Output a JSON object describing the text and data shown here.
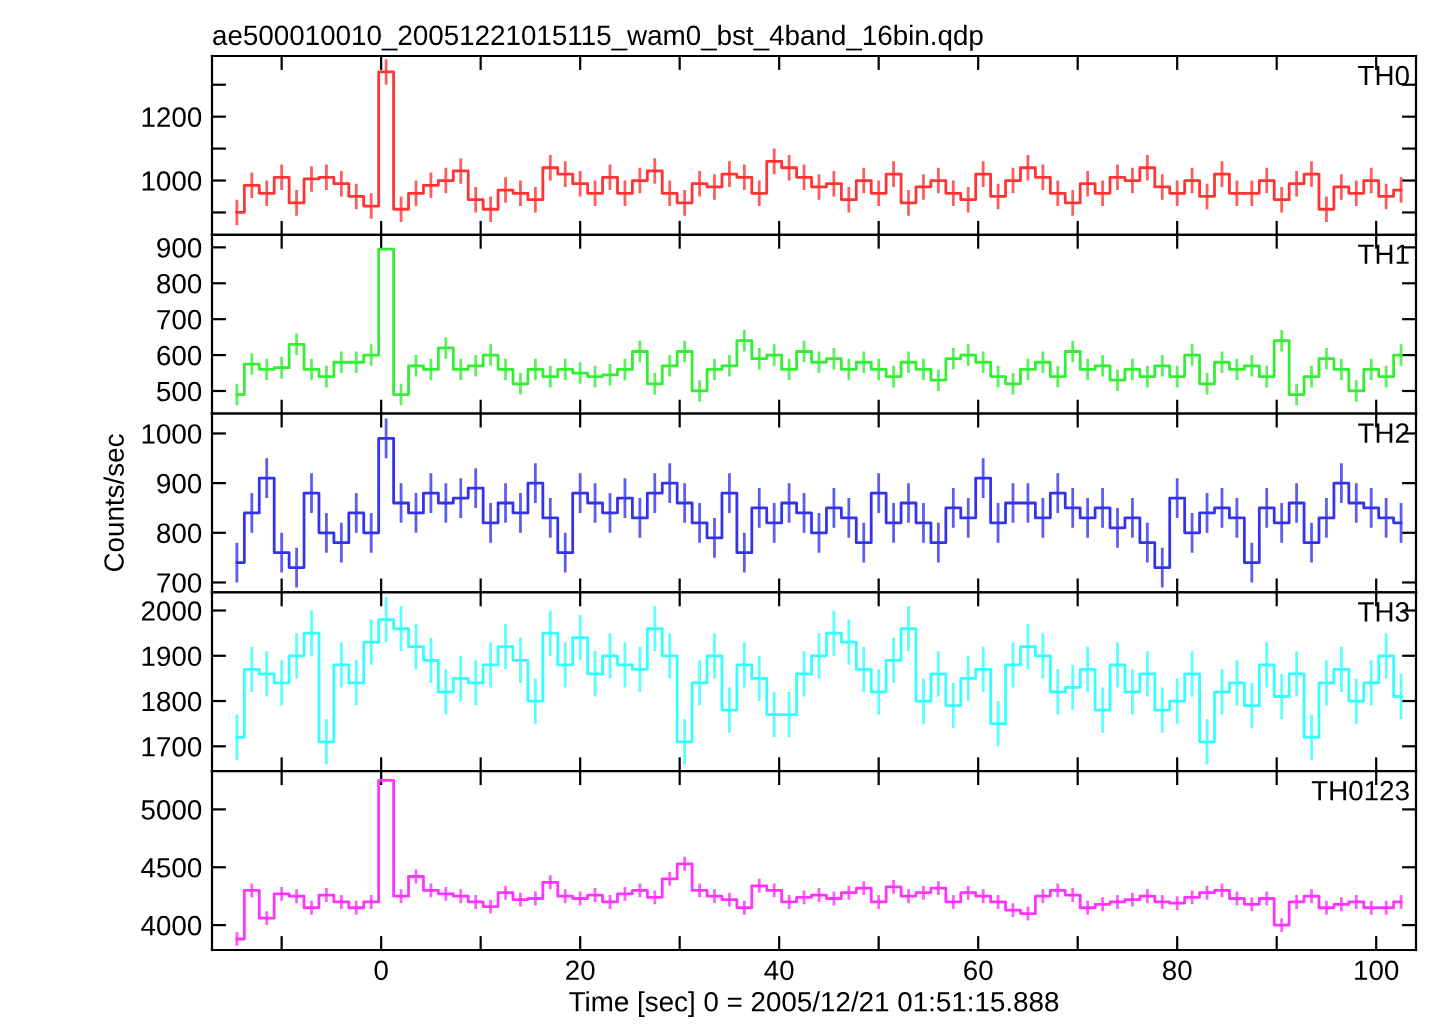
{
  "chart_data": [
    {
      "type": "step",
      "title": "ae500010010_20051221015115_wam0_bst_4band_16bin.qdp",
      "annotations": [
        "TH0"
      ],
      "tick_labels": "y",
      "marker": "none",
      "grid": false,
      "x": [
        -14.5,
        -13,
        -11.5,
        -10,
        -8.5,
        -7,
        -5.5,
        -4,
        -2.5,
        -1,
        0.5,
        2,
        3.5,
        5,
        6.5,
        8,
        9.5,
        11,
        12.5,
        14,
        15.5,
        17,
        18.5,
        20,
        21.5,
        23,
        24.5,
        26,
        27.5,
        29,
        30.5,
        32,
        33.5,
        35,
        36.5,
        38,
        39.5,
        41,
        42.5,
        44,
        45.5,
        47,
        48.5,
        50,
        51.5,
        53,
        54.5,
        56,
        57.5,
        59,
        60.5,
        62,
        63.5,
        65,
        66.5,
        68,
        69.5,
        71,
        72.5,
        74,
        75.5,
        77,
        78.5,
        80,
        81.5,
        83,
        84.5,
        86,
        87.5,
        89,
        90.5,
        92,
        93.5,
        95,
        96.5,
        98,
        99.5,
        101,
        102.5
      ],
      "xlim": [
        -17,
        104
      ],
      "xticks": [
        {
          "value": -10,
          "label": null
        },
        0,
        {
          "value": 10,
          "label": null
        },
        20,
        {
          "value": 30,
          "label": null
        },
        40,
        {
          "value": 50,
          "label": null
        },
        60,
        {
          "value": 70,
          "label": null
        },
        80,
        {
          "value": 90,
          "label": null
        },
        100
      ],
      "ylim": [
        830,
        1390
      ],
      "yticks": [
        {
          "value": 900,
          "label": null
        },
        1000,
        {
          "value": 1100,
          "label": null
        },
        1200,
        {
          "value": 1300,
          "label": null
        }
      ],
      "series": [
        {
          "color": "#ff3333",
          "values": [
            900,
            985,
            960,
            1010,
            930,
            1005,
            1010,
            990,
            950,
            920,
            1340,
            910,
            960,
            985,
            1000,
            1030,
            940,
            910,
            970,
            960,
            940,
            1040,
            1020,
            990,
            960,
            1010,
            960,
            1000,
            1030,
            960,
            930,
            990,
            980,
            1020,
            1010,
            960,
            1060,
            1040,
            1010,
            980,
            990,
            940,
            1000,
            960,
            1020,
            930,
            980,
            1000,
            960,
            940,
            1020,
            950,
            1000,
            1040,
            1010,
            960,
            930,
            990,
            960,
            1010,
            1000,
            1040,
            980,
            960,
            1000,
            950,
            1020,
            960,
            960,
            1000,
            940,
            990,
            1020,
            910,
            980,
            960,
            1000,
            950,
            970
          ],
          "errors": [
            40,
            40,
            40,
            40,
            40,
            40,
            40,
            40,
            40,
            40,
            40,
            40,
            40,
            40,
            40,
            40,
            40,
            40,
            40,
            40,
            40,
            40,
            40,
            40,
            40,
            40,
            40,
            40,
            40,
            40,
            40,
            40,
            40,
            40,
            40,
            40,
            40,
            40,
            40,
            40,
            40,
            40,
            40,
            40,
            40,
            40,
            40,
            40,
            40,
            40,
            40,
            40,
            40,
            40,
            40,
            40,
            40,
            40,
            40,
            40,
            40,
            40,
            40,
            40,
            40,
            40,
            40,
            40,
            40,
            40,
            40,
            40,
            40,
            40,
            40,
            40,
            40,
            40,
            40
          ]
        }
      ]
    },
    {
      "type": "step",
      "annotations": [
        "TH1"
      ],
      "tick_labels": "y",
      "marker": "none",
      "grid": false,
      "x": [
        -14.5,
        -13,
        -11.5,
        -10,
        -8.5,
        -7,
        -5.5,
        -4,
        -2.5,
        -1,
        0.5,
        2,
        3.5,
        5,
        6.5,
        8,
        9.5,
        11,
        12.5,
        14,
        15.5,
        17,
        18.5,
        20,
        21.5,
        23,
        24.5,
        26,
        27.5,
        29,
        30.5,
        32,
        33.5,
        35,
        36.5,
        38,
        39.5,
        41,
        42.5,
        44,
        45.5,
        47,
        48.5,
        50,
        51.5,
        53,
        54.5,
        56,
        57.5,
        59,
        60.5,
        62,
        63.5,
        65,
        66.5,
        68,
        69.5,
        71,
        72.5,
        74,
        75.5,
        77,
        78.5,
        80,
        81.5,
        83,
        84.5,
        86,
        87.5,
        89,
        90.5,
        92,
        93.5,
        95,
        96.5,
        98,
        99.5,
        101,
        102.5
      ],
      "xlim": [
        -17,
        104
      ],
      "xticks": [
        {
          "value": -10,
          "label": null
        },
        0,
        {
          "value": 10,
          "label": null
        },
        20,
        {
          "value": 30,
          "label": null
        },
        40,
        {
          "value": 50,
          "label": null
        },
        60,
        {
          "value": 70,
          "label": null
        },
        80,
        {
          "value": 90,
          "label": null
        },
        100
      ],
      "ylim": [
        437,
        935
      ],
      "yticks": [
        500,
        600,
        700,
        800,
        900
      ],
      "series": [
        {
          "color": "#33ee33",
          "values": [
            490,
            575,
            560,
            565,
            630,
            560,
            540,
            580,
            580,
            600,
            895,
            490,
            570,
            560,
            620,
            560,
            570,
            600,
            560,
            520,
            560,
            540,
            560,
            550,
            540,
            545,
            560,
            610,
            520,
            570,
            610,
            500,
            560,
            570,
            640,
            590,
            600,
            560,
            610,
            580,
            590,
            560,
            580,
            560,
            540,
            580,
            560,
            530,
            590,
            600,
            580,
            540,
            520,
            560,
            580,
            540,
            610,
            560,
            570,
            530,
            560,
            540,
            570,
            540,
            600,
            520,
            580,
            560,
            570,
            540,
            640,
            490,
            540,
            590,
            560,
            500,
            560,
            540,
            600
          ],
          "errors": [
            30,
            30,
            30,
            30,
            30,
            30,
            30,
            30,
            30,
            30,
            null,
            30,
            30,
            30,
            30,
            30,
            30,
            30,
            30,
            30,
            30,
            30,
            30,
            30,
            30,
            30,
            30,
            30,
            30,
            30,
            30,
            30,
            30,
            30,
            30,
            30,
            30,
            30,
            30,
            30,
            30,
            30,
            30,
            30,
            30,
            30,
            30,
            30,
            30,
            30,
            30,
            30,
            30,
            30,
            30,
            30,
            30,
            30,
            30,
            30,
            30,
            30,
            30,
            30,
            30,
            30,
            30,
            30,
            30,
            30,
            30,
            30,
            30,
            30,
            30,
            30,
            30,
            30,
            30
          ]
        }
      ]
    },
    {
      "type": "step",
      "annotations": [
        "TH2"
      ],
      "ylabel": "Counts/sec",
      "tick_labels": "y",
      "marker": "none",
      "grid": false,
      "x": [
        -14.5,
        -13,
        -11.5,
        -10,
        -8.5,
        -7,
        -5.5,
        -4,
        -2.5,
        -1,
        0.5,
        2,
        3.5,
        5,
        6.5,
        8,
        9.5,
        11,
        12.5,
        14,
        15.5,
        17,
        18.5,
        20,
        21.5,
        23,
        24.5,
        26,
        27.5,
        29,
        30.5,
        32,
        33.5,
        35,
        36.5,
        38,
        39.5,
        41,
        42.5,
        44,
        45.5,
        47,
        48.5,
        50,
        51.5,
        53,
        54.5,
        56,
        57.5,
        59,
        60.5,
        62,
        63.5,
        65,
        66.5,
        68,
        69.5,
        71,
        72.5,
        74,
        75.5,
        77,
        78.5,
        80,
        81.5,
        83,
        84.5,
        86,
        87.5,
        89,
        90.5,
        92,
        93.5,
        95,
        96.5,
        98,
        99.5,
        101,
        102.5
      ],
      "xlim": [
        -17,
        104
      ],
      "xticks": [
        {
          "value": -10,
          "label": null
        },
        0,
        {
          "value": 10,
          "label": null
        },
        20,
        {
          "value": 30,
          "label": null
        },
        40,
        {
          "value": 50,
          "label": null
        },
        60,
        {
          "value": 70,
          "label": null
        },
        80,
        {
          "value": 90,
          "label": null
        },
        100
      ],
      "ylim": [
        680,
        1040
      ],
      "yticks": [
        700,
        800,
        900,
        1000
      ],
      "series": [
        {
          "color": "#3333ee",
          "values": [
            740,
            840,
            910,
            760,
            730,
            880,
            800,
            780,
            840,
            800,
            990,
            860,
            840,
            880,
            860,
            870,
            890,
            820,
            860,
            840,
            900,
            830,
            760,
            880,
            860,
            840,
            870,
            830,
            880,
            900,
            860,
            820,
            790,
            880,
            760,
            850,
            820,
            860,
            840,
            800,
            850,
            830,
            780,
            880,
            820,
            860,
            820,
            780,
            850,
            830,
            910,
            820,
            860,
            860,
            830,
            880,
            850,
            830,
            850,
            810,
            830,
            780,
            730,
            870,
            800,
            840,
            850,
            830,
            740,
            850,
            820,
            860,
            780,
            830,
            900,
            860,
            850,
            830,
            820
          ],
          "errors": [
            40,
            40,
            40,
            40,
            40,
            40,
            40,
            40,
            40,
            40,
            40,
            40,
            40,
            40,
            40,
            40,
            40,
            40,
            40,
            40,
            40,
            40,
            40,
            40,
            40,
            40,
            40,
            40,
            40,
            40,
            40,
            40,
            40,
            40,
            40,
            40,
            40,
            40,
            40,
            40,
            40,
            40,
            40,
            40,
            40,
            40,
            40,
            40,
            40,
            40,
            40,
            40,
            40,
            40,
            40,
            40,
            40,
            40,
            40,
            40,
            40,
            40,
            40,
            40,
            40,
            40,
            40,
            40,
            40,
            40,
            40,
            40,
            40,
            40,
            40,
            40,
            40,
            40,
            40
          ]
        }
      ]
    },
    {
      "type": "step",
      "annotations": [
        "TH3"
      ],
      "tick_labels": "y",
      "marker": "none",
      "grid": false,
      "x": [
        -14.5,
        -13,
        -11.5,
        -10,
        -8.5,
        -7,
        -5.5,
        -4,
        -2.5,
        -1,
        0.5,
        2,
        3.5,
        5,
        6.5,
        8,
        9.5,
        11,
        12.5,
        14,
        15.5,
        17,
        18.5,
        20,
        21.5,
        23,
        24.5,
        26,
        27.5,
        29,
        30.5,
        32,
        33.5,
        35,
        36.5,
        38,
        39.5,
        41,
        42.5,
        44,
        45.5,
        47,
        48.5,
        50,
        51.5,
        53,
        54.5,
        56,
        57.5,
        59,
        60.5,
        62,
        63.5,
        65,
        66.5,
        68,
        69.5,
        71,
        72.5,
        74,
        75.5,
        77,
        78.5,
        80,
        81.5,
        83,
        84.5,
        86,
        87.5,
        89,
        90.5,
        92,
        93.5,
        95,
        96.5,
        98,
        99.5,
        101,
        102.5
      ],
      "xlim": [
        -17,
        104
      ],
      "xticks": [
        {
          "value": -10,
          "label": null
        },
        0,
        {
          "value": 10,
          "label": null
        },
        20,
        {
          "value": 30,
          "label": null
        },
        40,
        {
          "value": 50,
          "label": null
        },
        60,
        {
          "value": 70,
          "label": null
        },
        80,
        {
          "value": 90,
          "label": null
        },
        100
      ],
      "ylim": [
        1645,
        2040
      ],
      "yticks": [
        1700,
        1800,
        1900,
        2000
      ],
      "series": [
        {
          "color": "#33ffff",
          "values": [
            1720,
            1870,
            1860,
            1840,
            1900,
            1950,
            1710,
            1880,
            1840,
            1930,
            1980,
            1960,
            1920,
            1890,
            1820,
            1850,
            1840,
            1880,
            1920,
            1890,
            1800,
            1950,
            1880,
            1940,
            1860,
            1900,
            1880,
            1870,
            1960,
            1900,
            1710,
            1840,
            1900,
            1780,
            1880,
            1850,
            1770,
            1770,
            1860,
            1900,
            1950,
            1930,
            1870,
            1820,
            1890,
            1960,
            1800,
            1860,
            1790,
            1850,
            1870,
            1750,
            1880,
            1920,
            1900,
            1820,
            1830,
            1870,
            1780,
            1880,
            1820,
            1860,
            1780,
            1800,
            1860,
            1710,
            1820,
            1840,
            1790,
            1880,
            1810,
            1860,
            1720,
            1840,
            1870,
            1800,
            1840,
            1900,
            1810
          ],
          "errors": [
            50,
            50,
            50,
            50,
            50,
            50,
            50,
            50,
            50,
            50,
            50,
            50,
            50,
            50,
            50,
            50,
            50,
            50,
            50,
            50,
            50,
            50,
            50,
            50,
            50,
            50,
            50,
            50,
            50,
            50,
            50,
            50,
            50,
            50,
            50,
            50,
            50,
            50,
            50,
            50,
            50,
            50,
            50,
            50,
            50,
            50,
            50,
            50,
            50,
            50,
            50,
            50,
            50,
            50,
            50,
            50,
            50,
            50,
            50,
            50,
            50,
            50,
            50,
            50,
            50,
            50,
            50,
            50,
            50,
            50,
            50,
            50,
            50,
            50,
            50,
            50,
            50,
            50,
            50
          ]
        }
      ]
    },
    {
      "type": "step",
      "annotations": [
        "TH0123"
      ],
      "xlabel": "Time [sec] 0 = 2005/12/21 01:51:15.888",
      "marker": "none",
      "grid": false,
      "x": [
        -14.5,
        -13,
        -11.5,
        -10,
        -8.5,
        -7,
        -5.5,
        -4,
        -2.5,
        -1,
        0.5,
        2,
        3.5,
        5,
        6.5,
        8,
        9.5,
        11,
        12.5,
        14,
        15.5,
        17,
        18.5,
        20,
        21.5,
        23,
        24.5,
        26,
        27.5,
        29,
        30.5,
        32,
        33.5,
        35,
        36.5,
        38,
        39.5,
        41,
        42.5,
        44,
        45.5,
        47,
        48.5,
        50,
        51.5,
        53,
        54.5,
        56,
        57.5,
        59,
        60.5,
        62,
        63.5,
        65,
        66.5,
        68,
        69.5,
        71,
        72.5,
        74,
        75.5,
        77,
        78.5,
        80,
        81.5,
        83,
        84.5,
        86,
        87.5,
        89,
        90.5,
        92,
        93.5,
        95,
        96.5,
        98,
        99.5,
        101,
        102.5
      ],
      "xlim": [
        -17,
        104
      ],
      "xticks": [
        {
          "value": -10,
          "label": null
        },
        0,
        {
          "value": 10,
          "label": null
        },
        20,
        {
          "value": 30,
          "label": null
        },
        40,
        {
          "value": 50,
          "label": null
        },
        60,
        {
          "value": 70,
          "label": null
        },
        80,
        {
          "value": 90,
          "label": null
        },
        100
      ],
      "ylim": [
        3785,
        5330
      ],
      "yticks": [
        4000,
        4500,
        5000
      ],
      "series": [
        {
          "color": "#ff33ff",
          "values": [
            3880,
            4300,
            4060,
            4270,
            4250,
            4150,
            4260,
            4200,
            4150,
            4200,
            5250,
            4250,
            4420,
            4300,
            4270,
            4250,
            4200,
            4160,
            4280,
            4220,
            4230,
            4370,
            4250,
            4230,
            4260,
            4200,
            4270,
            4300,
            4240,
            4400,
            4530,
            4300,
            4250,
            4220,
            4150,
            4340,
            4300,
            4200,
            4240,
            4260,
            4230,
            4280,
            4320,
            4200,
            4330,
            4250,
            4280,
            4320,
            4200,
            4280,
            4250,
            4200,
            4130,
            4100,
            4250,
            4300,
            4260,
            4150,
            4180,
            4200,
            4220,
            4250,
            4200,
            4190,
            4240,
            4280,
            4300,
            4230,
            4180,
            4230,
            4000,
            4200,
            4250,
            4150,
            4180,
            4200,
            4150,
            4150,
            4200
          ],
          "errors": [
            60,
            60,
            60,
            60,
            60,
            60,
            60,
            60,
            60,
            60,
            null,
            60,
            60,
            60,
            60,
            60,
            60,
            60,
            60,
            60,
            60,
            60,
            60,
            60,
            60,
            60,
            60,
            60,
            60,
            60,
            60,
            60,
            60,
            60,
            60,
            60,
            60,
            60,
            60,
            60,
            60,
            60,
            60,
            60,
            60,
            60,
            60,
            60,
            60,
            60,
            60,
            60,
            60,
            60,
            60,
            60,
            60,
            60,
            60,
            60,
            60,
            60,
            60,
            60,
            60,
            60,
            60,
            60,
            60,
            60,
            60,
            60,
            60,
            60,
            60,
            60,
            60,
            60,
            60
          ]
        }
      ]
    }
  ]
}
